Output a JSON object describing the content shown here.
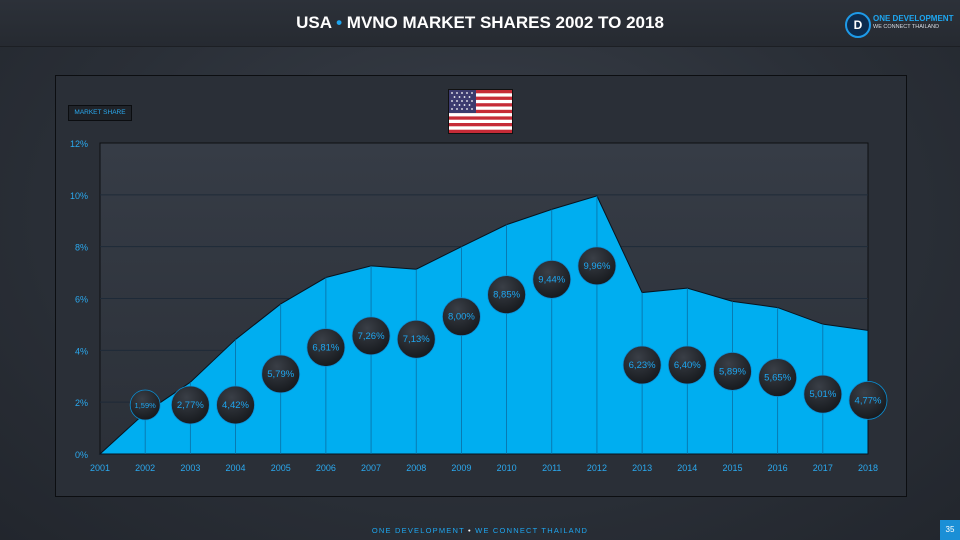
{
  "header": {
    "title_left": "USA",
    "title_separator": "•",
    "title_right": "MVNO MARKET SHARES 2002 TO 2018"
  },
  "logo": {
    "mark": "D",
    "name": "ONE DEVELOPMENT",
    "tagline": "WE CONNECT THAILAND"
  },
  "flag": {
    "country": "USA",
    "icon": "us-flag-icon"
  },
  "footer": {
    "left": "ONE DEVELOPMENT",
    "separator": "•",
    "right": "WE CONNECT THAILAND",
    "page_number": "35"
  },
  "colors": {
    "area_fill": "#00aef0",
    "accent": "#1ea6f0",
    "bubble_fill": "#1c1f24",
    "bubble_text": "#1ea6f0",
    "axis_text": "#2aa9ef"
  },
  "chart_data": {
    "type": "area",
    "legend": "MARKET SHARE",
    "x": [
      "2001",
      "2002",
      "2003",
      "2004",
      "2005",
      "2006",
      "2007",
      "2008",
      "2009",
      "2010",
      "2011",
      "2012",
      "2013",
      "2014",
      "2015",
      "2016",
      "2017",
      "2018"
    ],
    "values": [
      0,
      1.59,
      2.77,
      4.42,
      5.79,
      6.81,
      7.26,
      7.13,
      8.0,
      8.85,
      9.44,
      9.96,
      6.23,
      6.4,
      5.89,
      5.65,
      5.01,
      4.77
    ],
    "data_labels": [
      "",
      "1,59%",
      "2,77%",
      "4,42%",
      "5,79%",
      "6,81%",
      "7,26%",
      "7,13%",
      "8,00%",
      "8,85%",
      "9,44%",
      "9,96%",
      "6,23%",
      "6,40%",
      "5,89%",
      "5,65%",
      "5,01%",
      "4,77%"
    ],
    "y_ticks": [
      "0%",
      "2%",
      "4%",
      "6%",
      "8%",
      "10%",
      "12%"
    ],
    "ylim": [
      0,
      12
    ],
    "grid": true,
    "legend_position": "top-left"
  }
}
